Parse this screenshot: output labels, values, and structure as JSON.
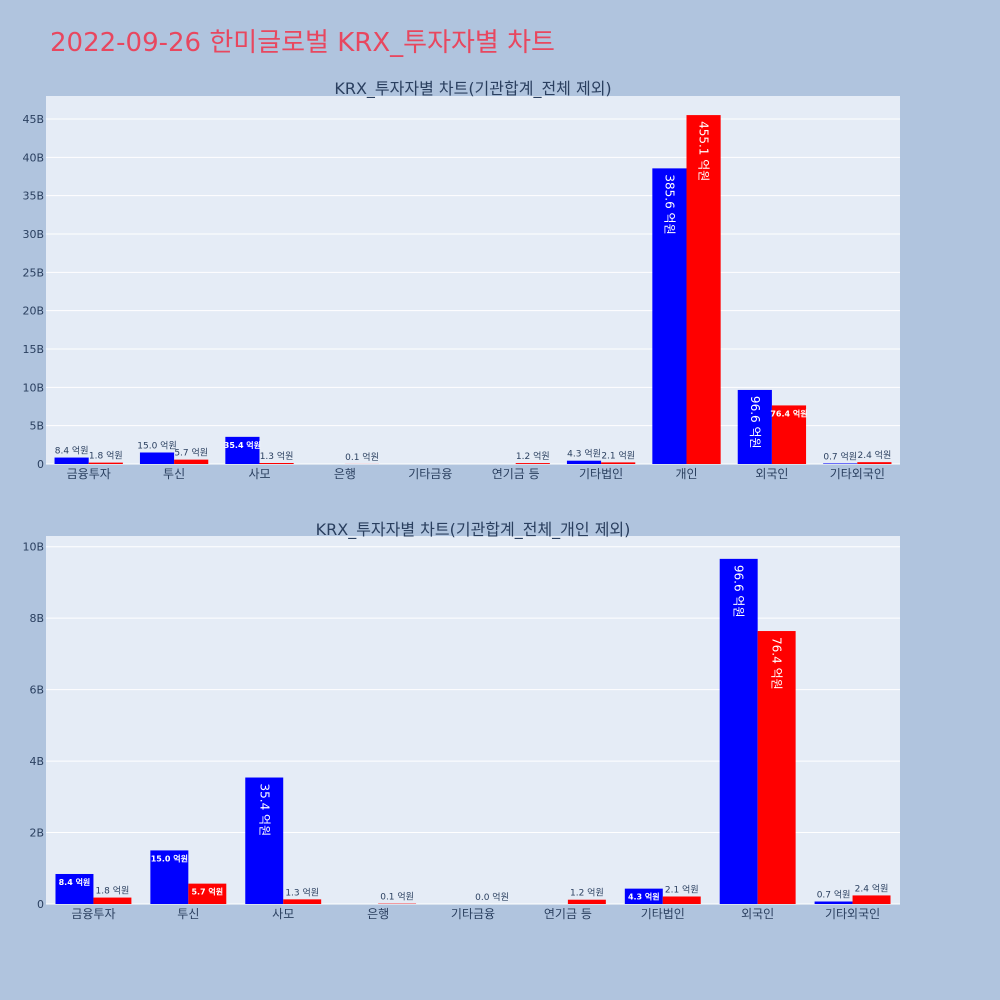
{
  "page_title": "2022-09-26 한미글로벌 KRX_투자자별 차트",
  "colors": {
    "background": "#b0c4de",
    "plot_background": "#e5ecf6",
    "title": "#e8475f",
    "buy": "#0000ff",
    "sell": "#ff0000",
    "text": "#2a3f5f"
  },
  "chart_data": [
    {
      "type": "bar",
      "title": "KRX_투자자별 차트(기관합계_전체 제외)",
      "xlabel": "",
      "ylabel": "",
      "categories": [
        "금융투자",
        "투신",
        "사모",
        "은행",
        "기타금융",
        "연기금 등",
        "기타법인",
        "개인",
        "외국인",
        "기타외국인"
      ],
      "ylim": [
        0,
        48
      ],
      "yticks": [
        0,
        5,
        10,
        15,
        20,
        25,
        30,
        35,
        40,
        45
      ],
      "ytick_labels": [
        "0",
        "5B",
        "10B",
        "15B",
        "20B",
        "25B",
        "30B",
        "35B",
        "40B",
        "45B"
      ],
      "series": [
        {
          "color": "#0000ff",
          "values": [
            0.84,
            1.5,
            3.54,
            null,
            null,
            null,
            0.43,
            38.56,
            9.66,
            0.07
          ],
          "labels": [
            "8.4 억원",
            "15.0 억원",
            "35.4 억원",
            "",
            "",
            "",
            "4.3 억원",
            "385.6 억원",
            "96.6 억원",
            "0.7 억원"
          ]
        },
        {
          "color": "#ff0000",
          "values": [
            0.18,
            0.57,
            0.13,
            0.01,
            null,
            0.12,
            0.21,
            45.51,
            7.64,
            0.24
          ],
          "labels": [
            "1.8 억원",
            "5.7 억원",
            "1.3 억원",
            "0.1 억원",
            "",
            "1.2 억원",
            "2.1 억원",
            "455.1 억원",
            "76.4 억원",
            "2.4 억원"
          ]
        }
      ]
    },
    {
      "type": "bar",
      "title": "KRX_투자자별 차트(기관합계_전체_개인 제외)",
      "xlabel": "",
      "ylabel": "",
      "categories": [
        "금융투자",
        "투신",
        "사모",
        "은행",
        "기타금융",
        "연기금 등",
        "기타법인",
        "외국인",
        "기타외국인"
      ],
      "ylim": [
        0,
        10.3
      ],
      "yticks": [
        0,
        2,
        4,
        6,
        8,
        10
      ],
      "ytick_labels": [
        "0",
        "2B",
        "4B",
        "6B",
        "8B",
        "10B"
      ],
      "series": [
        {
          "color": "#0000ff",
          "values": [
            0.84,
            1.5,
            3.54,
            null,
            null,
            null,
            0.43,
            9.66,
            0.07
          ],
          "labels": [
            "8.4 억원",
            "15.0 억원",
            "35.4 억원",
            "",
            "",
            "",
            "4.3 억원",
            "96.6 억원",
            "0.7 억원"
          ]
        },
        {
          "color": "#ff0000",
          "values": [
            0.18,
            0.57,
            0.13,
            0.01,
            0.0,
            0.12,
            0.21,
            7.64,
            0.24
          ],
          "labels": [
            "1.8 억원",
            "5.7 억원",
            "1.3 억원",
            "0.1 억원",
            "0.0 억원",
            "1.2 억원",
            "2.1 억원",
            "76.4 억원",
            "2.4 억원"
          ]
        }
      ]
    }
  ]
}
